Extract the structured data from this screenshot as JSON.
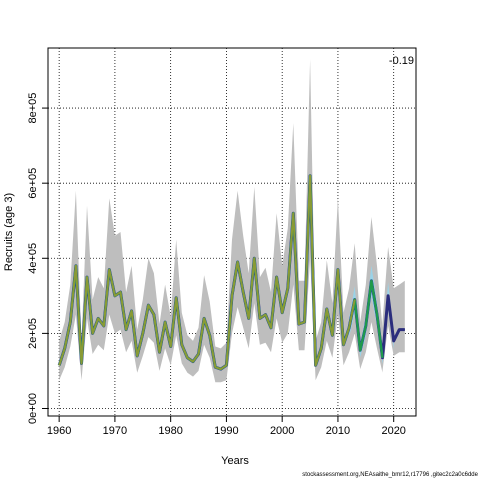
{
  "chart_data": {
    "type": "line",
    "xlabel": "Years",
    "ylabel": "Recruits (age 3)",
    "annotation": "-0.19",
    "footer": "stockassessment.org,NEAsaithe_bmr12,r17796 ,gitec2c2a0c6dde",
    "xlim": [
      1958,
      2024
    ],
    "ylim": [
      -20000,
      960000
    ],
    "xticks": [
      1960,
      1970,
      1980,
      1990,
      2000,
      2010,
      2020
    ],
    "xtick_labels": [
      "1960",
      "1970",
      "1980",
      "1990",
      "2000",
      "2010",
      "2020"
    ],
    "yticks": [
      0,
      200000,
      400000,
      600000,
      800000
    ],
    "ytick_labels": [
      "0e+00",
      "2e+05",
      "4e+05",
      "6e+05",
      "8e+05"
    ],
    "grid": true,
    "colors": {
      "band": "#bebebe",
      "retro_band": "#9ad3e8",
      "retro_dark": "#2b2d7c",
      "retro_mid": "#2f7fb0",
      "retro_green": "#1f9a4a",
      "main_line": "#8a9a35"
    },
    "series": [
      {
        "x": [
          1960,
          1961,
          1962,
          1963,
          1964,
          1965,
          1966,
          1967,
          1968,
          1969,
          1970,
          1971,
          1972,
          1973,
          1974,
          1975,
          1976,
          1977,
          1978,
          1979,
          1980,
          1981,
          1982,
          1983,
          1984,
          1985,
          1986,
          1987,
          1988,
          1989,
          1990,
          1991,
          1992,
          1993,
          1994,
          1995,
          1996,
          1997,
          1998,
          1999,
          2000,
          2001,
          2002,
          2003,
          2004,
          2005,
          2006,
          2007,
          2008,
          2009,
          2010,
          2011,
          2012,
          2013,
          2014,
          2015,
          2016,
          2017,
          2018
        ],
        "values": [
          115000,
          160000,
          230000,
          380000,
          120000,
          350000,
          200000,
          240000,
          220000,
          370000,
          300000,
          310000,
          210000,
          260000,
          140000,
          200000,
          275000,
          250000,
          150000,
          230000,
          165000,
          295000,
          170000,
          135000,
          125000,
          145000,
          240000,
          195000,
          110000,
          105000,
          115000,
          300000,
          390000,
          310000,
          240000,
          400000,
          240000,
          250000,
          215000,
          350000,
          255000,
          320000,
          520000,
          225000,
          230000,
          620000,
          115000,
          160000,
          265000,
          195000,
          370000,
          170000,
          215000,
          290000,
          155000,
          220000,
          340000,
          250000,
          135000
        ],
        "lower": [
          75000,
          110000,
          165000,
          250000,
          75000,
          240000,
          145000,
          170000,
          155000,
          250000,
          200000,
          210000,
          150000,
          180000,
          95000,
          140000,
          190000,
          175000,
          100000,
          160000,
          115000,
          195000,
          120000,
          95000,
          85000,
          100000,
          170000,
          135000,
          70000,
          70000,
          75000,
          200000,
          270000,
          215000,
          160000,
          280000,
          170000,
          175000,
          150000,
          240000,
          175000,
          200000,
          330000,
          155000,
          155000,
          400000,
          75000,
          110000,
          180000,
          135000,
          250000,
          115000,
          150000,
          200000,
          105000,
          150000,
          230000,
          160000,
          95000
        ],
        "upper": [
          180000,
          230000,
          330000,
          580000,
          180000,
          540000,
          290000,
          350000,
          320000,
          560000,
          460000,
          470000,
          310000,
          380000,
          210000,
          290000,
          400000,
          360000,
          225000,
          330000,
          245000,
          450000,
          255000,
          195000,
          180000,
          215000,
          355000,
          285000,
          165000,
          160000,
          175000,
          450000,
          580000,
          460000,
          360000,
          590000,
          350000,
          375000,
          310000,
          520000,
          380000,
          480000,
          760000,
          340000,
          340000,
          930000,
          180000,
          230000,
          395000,
          280000,
          560000,
          255000,
          320000,
          440000,
          230000,
          330000,
          510000,
          380000,
          215000
        ]
      }
    ],
    "retro_end": {
      "x": [
        2018,
        2019,
        2020,
        2021,
        2022
      ],
      "values": [
        140000,
        300000,
        180000,
        210000,
        210000
      ],
      "lower": [
        100000,
        220000,
        140000,
        150000,
        150000
      ],
      "upper": [
        230000,
        430000,
        320000,
        330000,
        340000
      ]
    }
  }
}
